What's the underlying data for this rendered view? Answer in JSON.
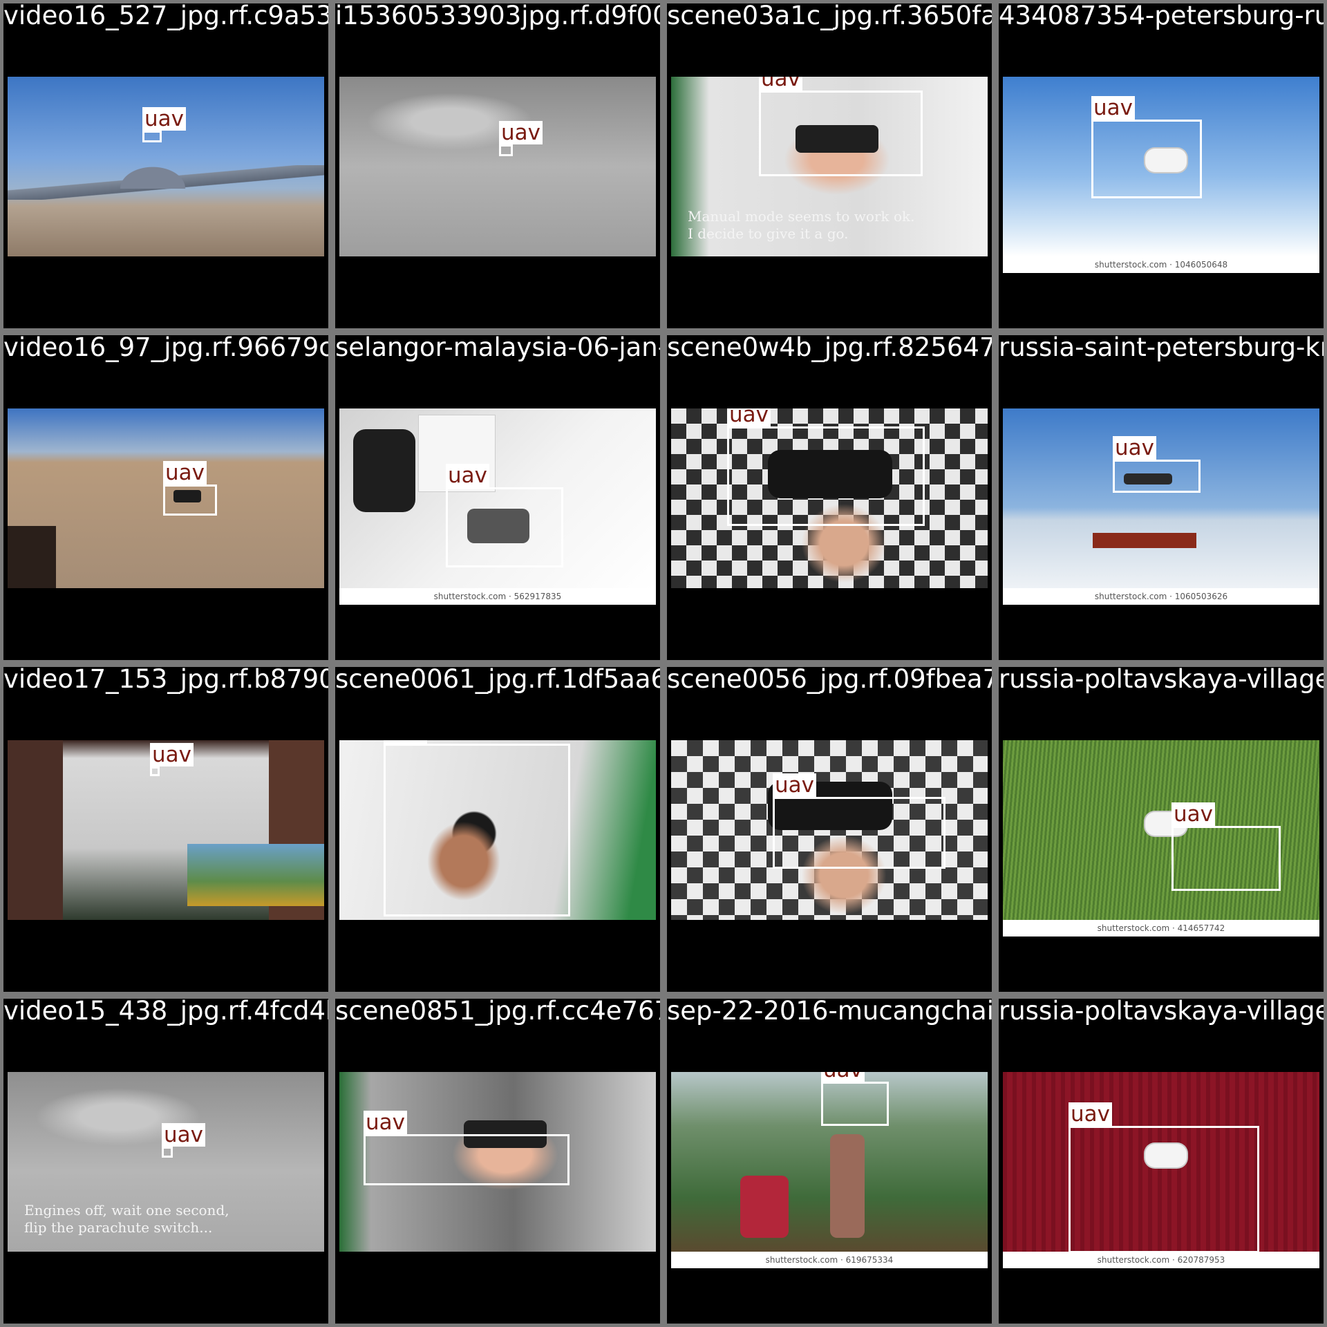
{
  "label": "uav",
  "tiles": [
    {
      "file": "video16_527_jpg.rf.c9a533f9c8a6f0533903f6",
      "caption": "",
      "watermark": ""
    },
    {
      "file": "i15360533903jpg.rf.d9f00733f2170421441b",
      "caption": "",
      "watermark": ""
    },
    {
      "file": "scene03a1c_jpg.rf.3650fa5a1340873e4bacd",
      "caption": "Manual mode seems to work ok.\nI decide to give it a go.",
      "watermark": ""
    },
    {
      "file": "434087354-petersburg-russia-march",
      "caption": "",
      "watermark": "shutterstock.com · 1046050648"
    },
    {
      "file": "video16_97_jpg.rf.96679cc8990120a3d5a45",
      "caption": "",
      "watermark": ""
    },
    {
      "file": "selangor-malaysia-06-jan-2017-2600245629",
      "caption": "",
      "watermark": "shutterstock.com · 562917835"
    },
    {
      "file": "scene0w4b_jpg.rf.825647a0f0eb1f3b1849e",
      "caption": "",
      "watermark": ""
    },
    {
      "file": "russia-saint-petersburg-kronshtadt",
      "caption": "",
      "watermark": "shutterstock.com · 1060503626"
    },
    {
      "file": "video17_153_jpg.rf.b879050d9a9867161ba63",
      "caption": "",
      "watermark": ""
    },
    {
      "file": "scene0061_jpg.rf.1df5aa64c624490755d895",
      "caption": "",
      "watermark": ""
    },
    {
      "file": "scene0056_jpg.rf.09fbea774cf4264e99c4b9",
      "caption": "",
      "watermark": ""
    },
    {
      "file": "russia-poltavskaya-village-may",
      "caption": "",
      "watermark": "shutterstock.com · 414657742"
    },
    {
      "file": "video15_438_jpg.rf.4fcd4ba1779f9583117de",
      "caption": "Engines off, wait one second,\nflip the parachute switch...",
      "watermark": ""
    },
    {
      "file": "scene0851_jpg.rf.cc4e7679cebe2720136c1f",
      "caption": "",
      "watermark": ""
    },
    {
      "file": "sep-22-2016-mucangchai-vietnam-2610",
      "caption": "",
      "watermark": "shutterstock.com · 619675334"
    },
    {
      "file": "russia-poltavskaya-village-28",
      "caption": "",
      "watermark": "shutterstock.com · 620787953"
    }
  ]
}
